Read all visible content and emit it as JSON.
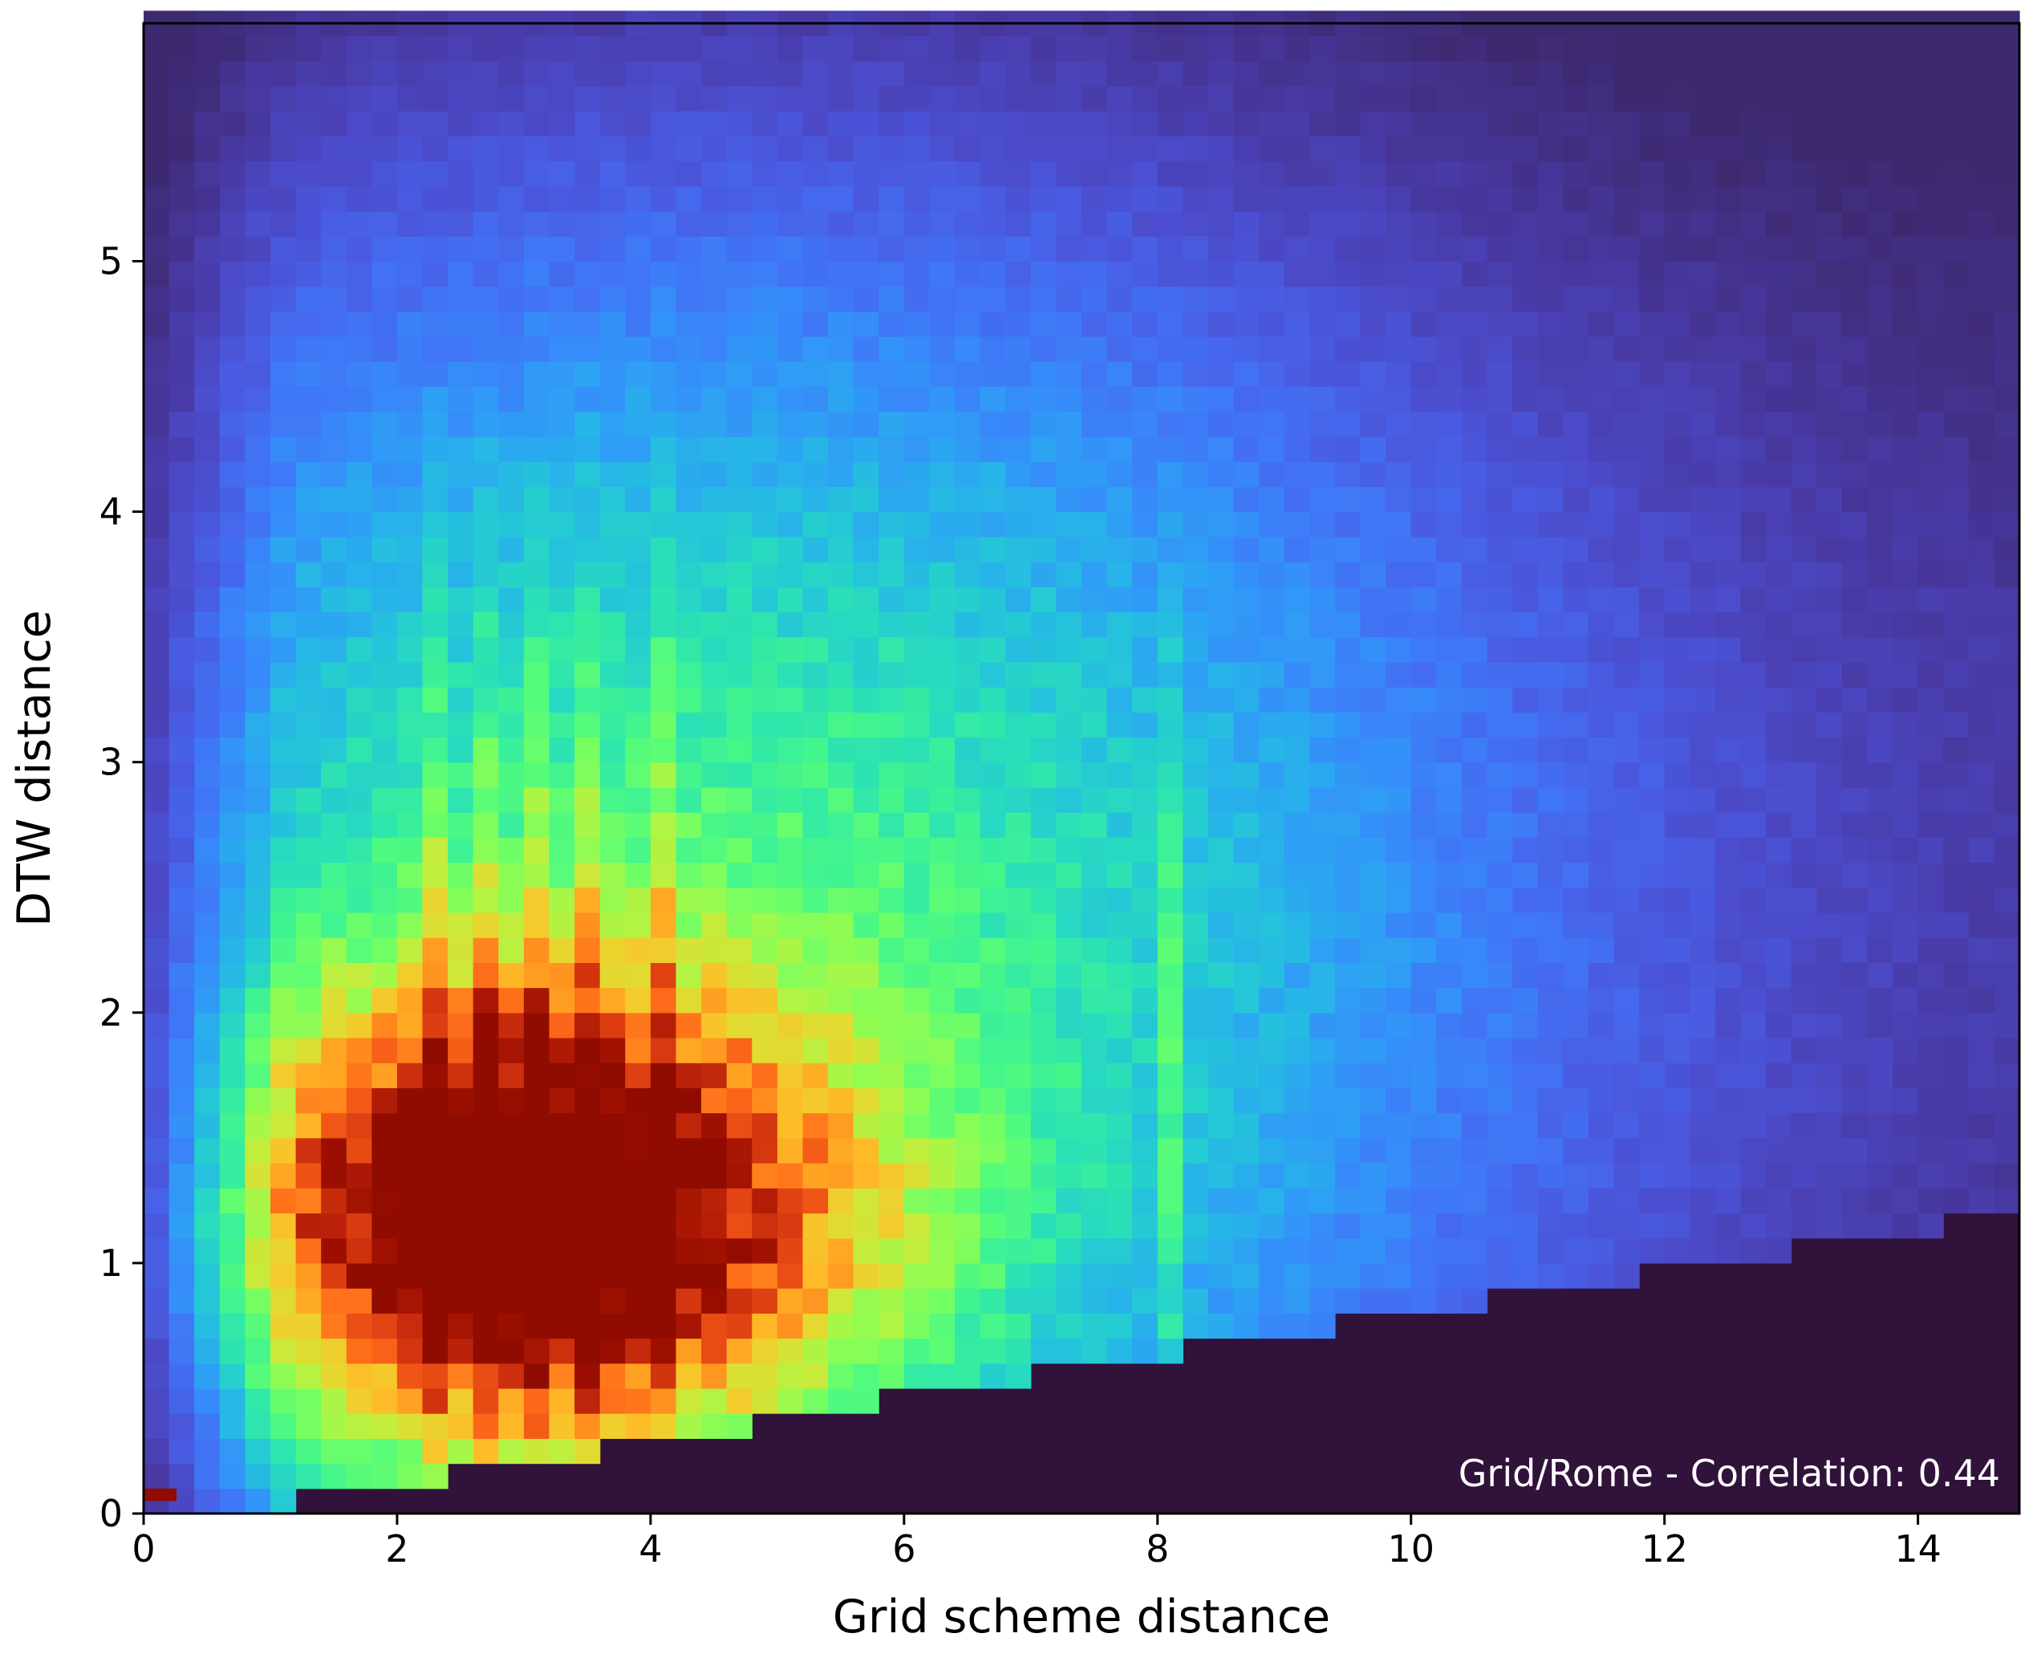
{
  "chart_data": {
    "type": "heatmap",
    "title": "",
    "xlabel": "Grid scheme distance",
    "ylabel": "DTW distance",
    "xlim": [
      0,
      14.8
    ],
    "ylim": [
      0,
      5.95
    ],
    "xticks": [
      0,
      2,
      4,
      6,
      8,
      10,
      12,
      14
    ],
    "yticks": [
      0,
      1,
      2,
      3,
      4,
      5
    ],
    "grid": false,
    "legend": "none",
    "colormap": "turbo",
    "background_color": "#30123b",
    "annotation": "Grid/Rome - Correlation: 0.44",
    "annotation_color": "#ffffff",
    "bins": {
      "x_bins": 74,
      "y_bins": 60,
      "x_bin_width": 0.2,
      "y_bin_width": 0.1
    },
    "density_model": {
      "description": "2D histogram density, normalized 0-1; peak at grid distance approx 2.5-3.5, DTW approx 1.1",
      "peak_x": 3.0,
      "peak_y": 1.15,
      "min_dtw_at_grid_0": 0.0,
      "lower_edge_slope": 0.085,
      "vertical_ridges_x": [
        2.3,
        2.7,
        3.1,
        3.5,
        4.1,
        8.1
      ],
      "hot_spot": {
        "x": 0.1,
        "y": 0.02,
        "value": 1.0
      }
    }
  }
}
